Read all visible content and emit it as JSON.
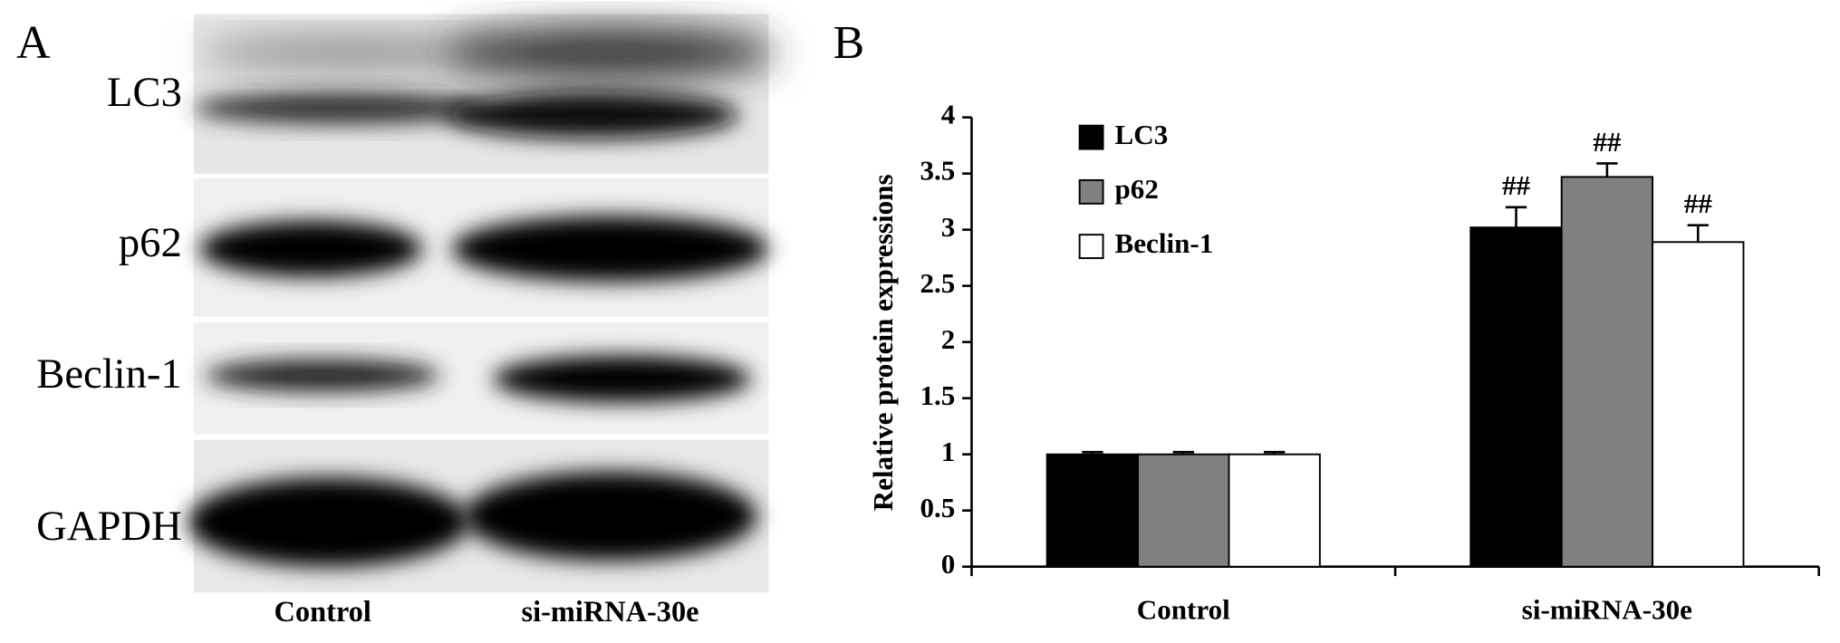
{
  "panel_labels": [
    "A",
    "B"
  ],
  "blot": {
    "rows": [
      "LC3",
      "p62",
      "Beclin-1",
      "GAPDH"
    ],
    "lanes": [
      "Control",
      "si-miRNA-30e"
    ]
  },
  "chart_data": {
    "type": "bar",
    "y_label": "Relative protein expressions",
    "categories": [
      "Control",
      "si-miRNA-30e"
    ],
    "series": [
      {
        "name": "LC3",
        "color": "#000000",
        "values": [
          1,
          3.02
        ],
        "errors": [
          0.02,
          0.18
        ]
      },
      {
        "name": "p62",
        "color": "#808080",
        "values": [
          1,
          3.47
        ],
        "errors": [
          0.02,
          0.12
        ]
      },
      {
        "name": "Beclin-1",
        "color": "#ffffff",
        "values": [
          1,
          2.89
        ],
        "errors": [
          0.02,
          0.15
        ]
      }
    ],
    "significance": [
      {
        "series": "LC3",
        "category": "si-miRNA-30e",
        "label": "##"
      },
      {
        "series": "p62",
        "category": "si-miRNA-30e",
        "label": "##"
      },
      {
        "series": "Beclin-1",
        "category": "si-miRNA-30e",
        "label": "##"
      }
    ],
    "ylim": [
      0,
      4
    ],
    "yticks": [
      0,
      0.5,
      1,
      1.5,
      2,
      2.5,
      3,
      3.5,
      4
    ],
    "legend": "upper-left"
  }
}
